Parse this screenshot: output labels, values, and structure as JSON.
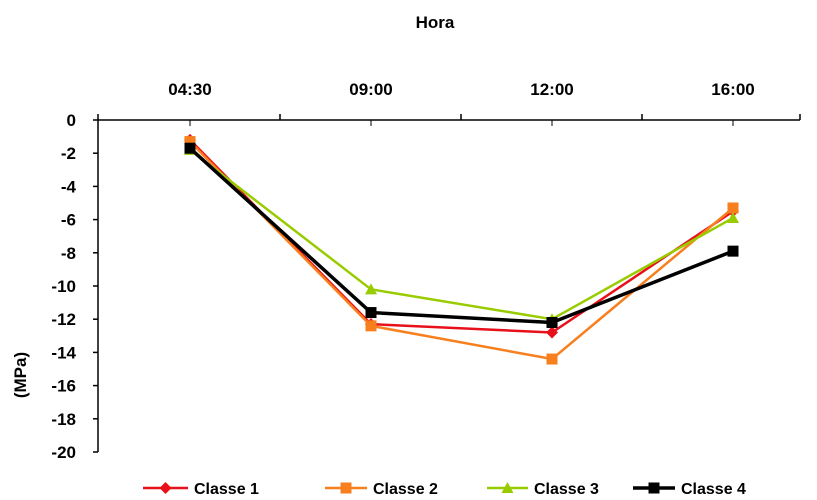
{
  "chart_data": {
    "type": "line",
    "title": "Hora",
    "xlabel": "",
    "ylabel": "(MPa)",
    "categories": [
      "04:30",
      "09:00",
      "12:00",
      "16:00"
    ],
    "ylim": [
      -20,
      0
    ],
    "yticks": [
      0,
      -2,
      -4,
      -6,
      -8,
      -10,
      -12,
      -14,
      -16,
      -18,
      -20
    ],
    "x_axis_position": "top",
    "grid": false,
    "legend_position": "bottom",
    "series": [
      {
        "name": "Classe 1",
        "color": "#e8101a",
        "marker": "diamond",
        "values": [
          -1.2,
          -12.3,
          -12.8,
          -5.5
        ]
      },
      {
        "name": "Classe 2",
        "color": "#f77f1e",
        "marker": "square",
        "values": [
          -1.3,
          -12.4,
          -14.4,
          -5.3
        ]
      },
      {
        "name": "Classe 3",
        "color": "#99cc00",
        "marker": "triangle",
        "values": [
          -1.8,
          -10.2,
          -12.0,
          -5.9
        ]
      },
      {
        "name": "Classe 4",
        "color": "#000000",
        "marker": "square",
        "values": [
          -1.7,
          -11.6,
          -12.2,
          -7.9
        ]
      }
    ]
  }
}
